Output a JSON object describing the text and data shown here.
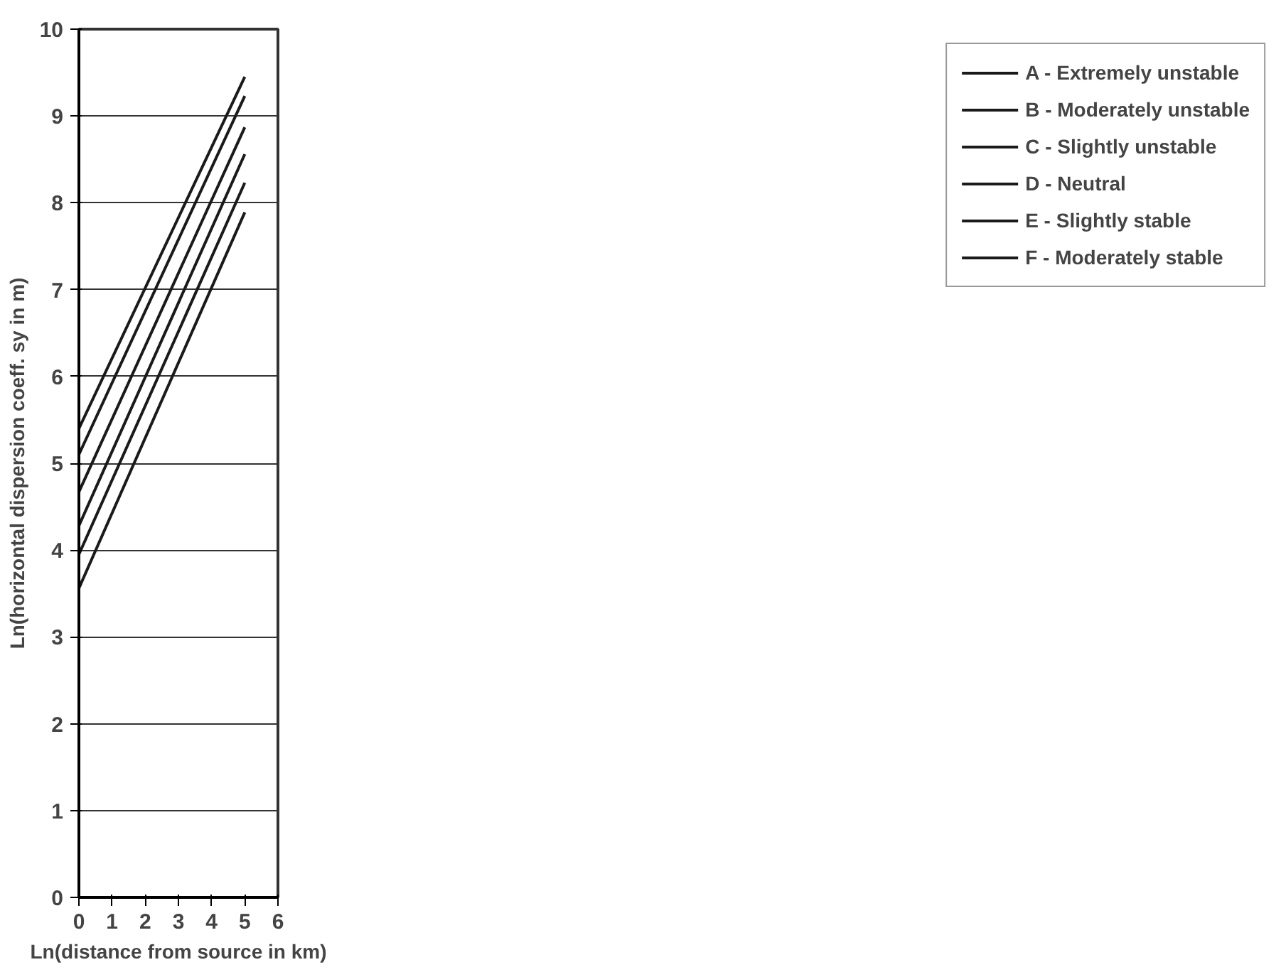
{
  "chart_data": {
    "type": "line",
    "xlabel": "Ln(distance from source in km)",
    "ylabel": "Ln(horizontal dispersion coeff. sy in m)",
    "x": [
      0,
      5
    ],
    "series": [
      {
        "name": "A - Extremely unstable",
        "color": "#1a1a1a",
        "values": [
          5.4,
          9.45
        ]
      },
      {
        "name": "B - Moderately unstable",
        "color": "#1a1a1a",
        "values": [
          5.1,
          9.23
        ]
      },
      {
        "name": "C - Slightly unstable",
        "color": "#1a1a1a",
        "values": [
          4.67,
          8.87
        ]
      },
      {
        "name": "D - Neutral",
        "color": "#1a1a1a",
        "values": [
          4.28,
          8.56
        ]
      },
      {
        "name": "E - Slightly stable",
        "color": "#1a1a1a",
        "values": [
          3.95,
          8.23
        ]
      },
      {
        "name": "F - Moderately stable",
        "color": "#1a1a1a",
        "values": [
          3.56,
          7.89
        ]
      }
    ],
    "xlim": [
      0,
      6
    ],
    "xticks": [
      0,
      1,
      2,
      3,
      4,
      5,
      6
    ],
    "ylim": [
      0,
      10
    ],
    "yticks": [
      0,
      1,
      2,
      3,
      4,
      5,
      6,
      7,
      8,
      9,
      10
    ],
    "grid": "y",
    "legend": "right",
    "marker": "none",
    "line_style": "solid"
  }
}
